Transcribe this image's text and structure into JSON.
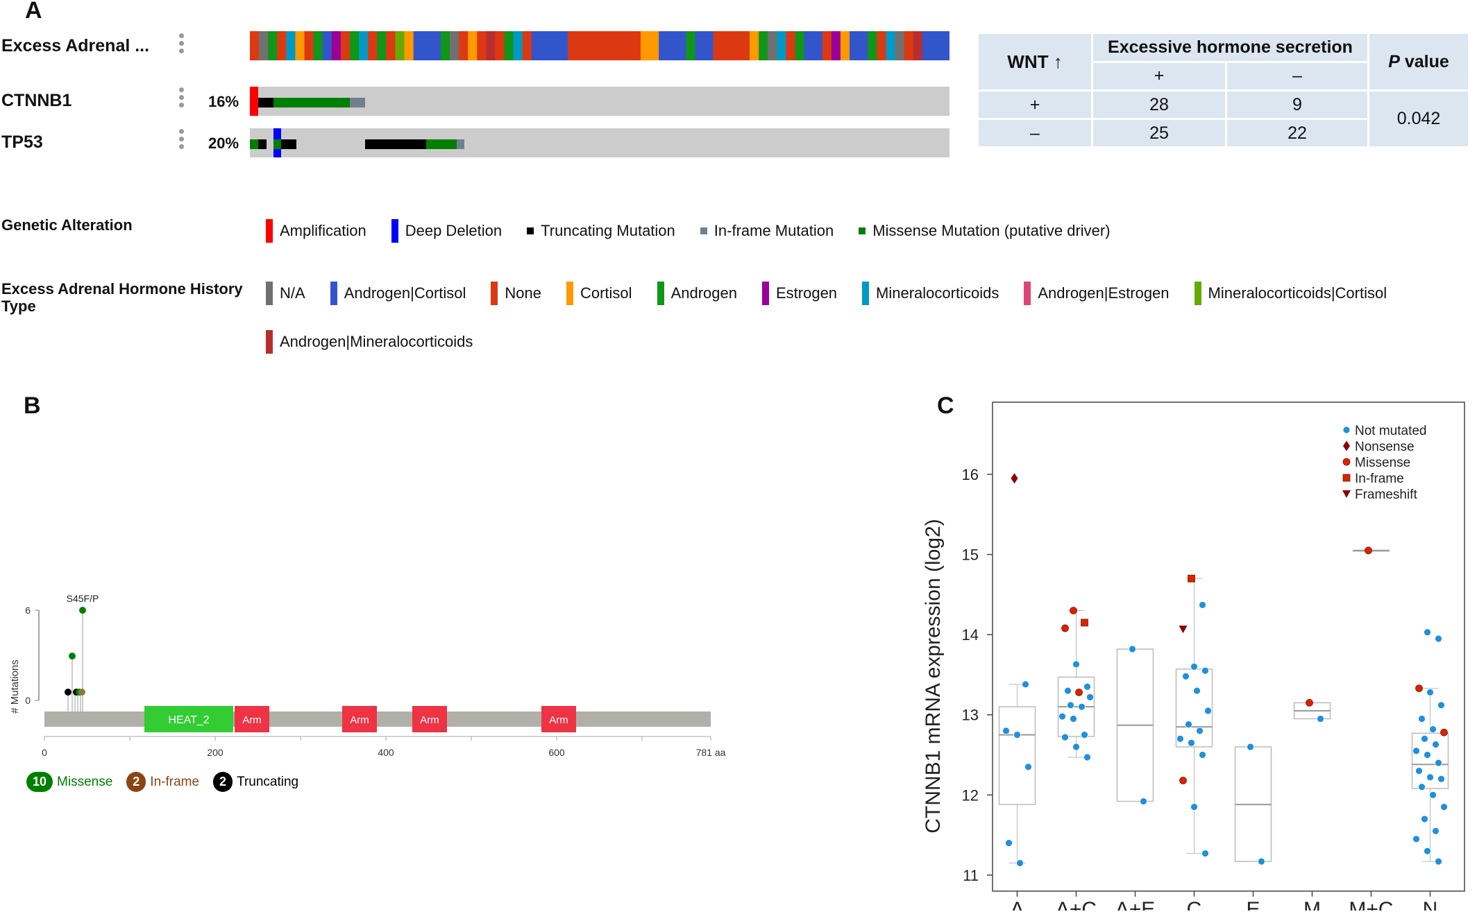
{
  "panel_a": {
    "letter": "A",
    "tracks": [
      {
        "name": "Excess Adrenal ...",
        "pct": ""
      },
      {
        "name": "CTNNB1",
        "pct": "16%"
      },
      {
        "name": "TP53",
        "pct": "20%"
      }
    ],
    "genetic_alteration": {
      "title": "Genetic Alteration",
      "items": [
        {
          "label": "Amplification",
          "color": "#ff0000"
        },
        {
          "label": "Deep Deletion",
          "color": "#0000ff"
        },
        {
          "label": "Truncating Mutation",
          "color": "#000000"
        },
        {
          "label": "In-frame Mutation",
          "color": "#708090"
        },
        {
          "label": "Missense Mutation (putative driver)",
          "color": "#008000"
        }
      ]
    },
    "hormone_type": {
      "title": "Excess Adrenal Hormone History Type",
      "items": [
        {
          "label": "N/A",
          "color": "#707070"
        },
        {
          "label": "Androgen|Cortisol",
          "color": "#3355cc"
        },
        {
          "label": "None",
          "color": "#dc3912"
        },
        {
          "label": "Cortisol",
          "color": "#ff9900"
        },
        {
          "label": "Androgen",
          "color": "#109618"
        },
        {
          "label": "Estrogen",
          "color": "#990099"
        },
        {
          "label": "Mineralocorticoids",
          "color": "#0099c6"
        },
        {
          "label": "Androgen|Estrogen",
          "color": "#dd4477"
        },
        {
          "label": "Mineralocorticoids|Cortisol",
          "color": "#66aa00"
        },
        {
          "label": "Androgen|Mineralocorticoids",
          "color": "#b82e2e"
        }
      ]
    },
    "table": {
      "wnt_header": "WNT ↑",
      "hormone_header": "Excessive hormone secretion",
      "plus": "+",
      "minus": "–",
      "pvalue_italic": "P",
      "pvalue_rest": " value",
      "rows": [
        {
          "label": "+",
          "plus": "28",
          "minus": "9"
        },
        {
          "label": "–",
          "plus": "25",
          "minus": "22"
        }
      ],
      "pvalue": "0.042"
    }
  },
  "panel_b": {
    "letter": "B",
    "y_label": "# Mutations",
    "y_ticks": [
      "6",
      "0"
    ],
    "hotspot_label": "S45F/P",
    "domains": [
      "HEAT_2",
      "Arm",
      "Arm",
      "Arm",
      "Arm"
    ],
    "x_ticks": [
      "0",
      "200",
      "400",
      "600",
      "781 aa"
    ],
    "legend": [
      {
        "count": "10",
        "label": "Missense",
        "color": "#008000"
      },
      {
        "count": "2",
        "label": "In-frame",
        "color": "#8b4513"
      },
      {
        "count": "2",
        "label": "Truncating",
        "color": "#000000"
      }
    ]
  },
  "panel_c": {
    "letter": "C"
  },
  "chart_data": {
    "type": "scatter",
    "ylabel": "CTNNB1 mRNA expression (log2)",
    "ylim": [
      10.8,
      16.9
    ],
    "y_ticks": [
      11,
      12,
      13,
      14,
      15,
      16
    ],
    "categories": [
      "A",
      "A+C",
      "A+E",
      "C",
      "E",
      "M",
      "M+C",
      "N"
    ],
    "legend_placement": "top-right",
    "legend": [
      {
        "label": "Not mutated",
        "marker": "circle",
        "color": "#1e90dd"
      },
      {
        "label": "Nonsense",
        "marker": "diamond",
        "color": "#8b0000"
      },
      {
        "label": "Missense",
        "marker": "circle",
        "color": "#dd2200"
      },
      {
        "label": "In-frame",
        "marker": "square",
        "color": "#dd2200"
      },
      {
        "label": "Frameshift",
        "marker": "triangle",
        "color": "#8b0000"
      }
    ],
    "boxes": [
      {
        "category": "A",
        "min": 11.15,
        "q1": 11.88,
        "median": 12.75,
        "q3": 13.1,
        "max": 13.38
      },
      {
        "category": "A+C",
        "min": 12.47,
        "q1": 12.73,
        "median": 13.1,
        "q3": 13.47,
        "max": 14.3
      },
      {
        "category": "A+E",
        "min": 11.92,
        "q1": 11.92,
        "median": 12.87,
        "q3": 13.82,
        "max": 13.82
      },
      {
        "category": "C",
        "min": 11.27,
        "q1": 12.6,
        "median": 12.85,
        "q3": 13.57,
        "max": 14.7
      },
      {
        "category": "E",
        "min": 11.17,
        "q1": 11.17,
        "median": 11.88,
        "q3": 12.6,
        "max": 12.6
      },
      {
        "category": "M",
        "min": 12.95,
        "q1": 12.95,
        "median": 13.05,
        "q3": 13.15,
        "max": 13.15
      },
      {
        "category": "M+C",
        "min": 15.05,
        "q1": 15.05,
        "median": 15.05,
        "q3": 15.05,
        "max": 15.05
      },
      {
        "category": "N",
        "min": 11.17,
        "q1": 12.08,
        "median": 12.38,
        "q3": 12.77,
        "max": 13.33
      }
    ],
    "points": [
      {
        "category": "A",
        "y": 15.95,
        "type": "Nonsense"
      },
      {
        "category": "A",
        "y": 13.38,
        "type": "Not mutated"
      },
      {
        "category": "A",
        "y": 12.8,
        "type": "Not mutated"
      },
      {
        "category": "A",
        "y": 12.75,
        "type": "Not mutated"
      },
      {
        "category": "A",
        "y": 12.35,
        "type": "Not mutated"
      },
      {
        "category": "A",
        "y": 11.4,
        "type": "Not mutated"
      },
      {
        "category": "A",
        "y": 11.15,
        "type": "Not mutated"
      },
      {
        "category": "A+C",
        "y": 14.3,
        "type": "Missense"
      },
      {
        "category": "A+C",
        "y": 14.15,
        "type": "In-frame"
      },
      {
        "category": "A+C",
        "y": 14.08,
        "type": "Missense"
      },
      {
        "category": "A+C",
        "y": 13.63,
        "type": "Not mutated"
      },
      {
        "category": "A+C",
        "y": 13.35,
        "type": "Not mutated"
      },
      {
        "category": "A+C",
        "y": 13.3,
        "type": "Not mutated"
      },
      {
        "category": "A+C",
        "y": 13.28,
        "type": "Missense"
      },
      {
        "category": "A+C",
        "y": 13.22,
        "type": "Not mutated"
      },
      {
        "category": "A+C",
        "y": 13.12,
        "type": "Not mutated"
      },
      {
        "category": "A+C",
        "y": 13.1,
        "type": "Not mutated"
      },
      {
        "category": "A+C",
        "y": 12.98,
        "type": "Not mutated"
      },
      {
        "category": "A+C",
        "y": 12.95,
        "type": "Not mutated"
      },
      {
        "category": "A+C",
        "y": 12.75,
        "type": "Not mutated"
      },
      {
        "category": "A+C",
        "y": 12.72,
        "type": "Not mutated"
      },
      {
        "category": "A+C",
        "y": 12.6,
        "type": "Not mutated"
      },
      {
        "category": "A+C",
        "y": 12.47,
        "type": "Not mutated"
      },
      {
        "category": "A+E",
        "y": 13.82,
        "type": "Not mutated"
      },
      {
        "category": "A+E",
        "y": 11.92,
        "type": "Not mutated"
      },
      {
        "category": "C",
        "y": 14.7,
        "type": "In-frame"
      },
      {
        "category": "C",
        "y": 14.37,
        "type": "Not mutated"
      },
      {
        "category": "C",
        "y": 14.07,
        "type": "Frameshift"
      },
      {
        "category": "C",
        "y": 13.6,
        "type": "Not mutated"
      },
      {
        "category": "C",
        "y": 13.55,
        "type": "Not mutated"
      },
      {
        "category": "C",
        "y": 13.48,
        "type": "Not mutated"
      },
      {
        "category": "C",
        "y": 13.3,
        "type": "Not mutated"
      },
      {
        "category": "C",
        "y": 13.05,
        "type": "Not mutated"
      },
      {
        "category": "C",
        "y": 12.88,
        "type": "Not mutated"
      },
      {
        "category": "C",
        "y": 12.8,
        "type": "Not mutated"
      },
      {
        "category": "C",
        "y": 12.7,
        "type": "Not mutated"
      },
      {
        "category": "C",
        "y": 12.65,
        "type": "Not mutated"
      },
      {
        "category": "C",
        "y": 12.5,
        "type": "Not mutated"
      },
      {
        "category": "C",
        "y": 12.18,
        "type": "Missense"
      },
      {
        "category": "C",
        "y": 11.85,
        "type": "Not mutated"
      },
      {
        "category": "C",
        "y": 11.27,
        "type": "Not mutated"
      },
      {
        "category": "E",
        "y": 12.6,
        "type": "Not mutated"
      },
      {
        "category": "E",
        "y": 11.17,
        "type": "Not mutated"
      },
      {
        "category": "M",
        "y": 13.15,
        "type": "Missense"
      },
      {
        "category": "M",
        "y": 12.95,
        "type": "Not mutated"
      },
      {
        "category": "M+C",
        "y": 15.05,
        "type": "Missense"
      },
      {
        "category": "N",
        "y": 14.03,
        "type": "Not mutated"
      },
      {
        "category": "N",
        "y": 13.95,
        "type": "Not mutated"
      },
      {
        "category": "N",
        "y": 13.33,
        "type": "Missense"
      },
      {
        "category": "N",
        "y": 13.28,
        "type": "Not mutated"
      },
      {
        "category": "N",
        "y": 13.12,
        "type": "Not mutated"
      },
      {
        "category": "N",
        "y": 12.95,
        "type": "Not mutated"
      },
      {
        "category": "N",
        "y": 12.82,
        "type": "Not mutated"
      },
      {
        "category": "N",
        "y": 12.78,
        "type": "Missense"
      },
      {
        "category": "N",
        "y": 12.7,
        "type": "Not mutated"
      },
      {
        "category": "N",
        "y": 12.63,
        "type": "Not mutated"
      },
      {
        "category": "N",
        "y": 12.55,
        "type": "Not mutated"
      },
      {
        "category": "N",
        "y": 12.5,
        "type": "Not mutated"
      },
      {
        "category": "N",
        "y": 12.4,
        "type": "Not mutated"
      },
      {
        "category": "N",
        "y": 12.3,
        "type": "Not mutated"
      },
      {
        "category": "N",
        "y": 12.22,
        "type": "Not mutated"
      },
      {
        "category": "N",
        "y": 12.2,
        "type": "Not mutated"
      },
      {
        "category": "N",
        "y": 12.1,
        "type": "Not mutated"
      },
      {
        "category": "N",
        "y": 12.0,
        "type": "Not mutated"
      },
      {
        "category": "N",
        "y": 11.85,
        "type": "Not mutated"
      },
      {
        "category": "N",
        "y": 11.7,
        "type": "Not mutated"
      },
      {
        "category": "N",
        "y": 11.55,
        "type": "Not mutated"
      },
      {
        "category": "N",
        "y": 11.45,
        "type": "Not mutated"
      },
      {
        "category": "N",
        "y": 11.3,
        "type": "Not mutated"
      },
      {
        "category": "N",
        "y": 11.17,
        "type": "Not mutated"
      }
    ]
  }
}
